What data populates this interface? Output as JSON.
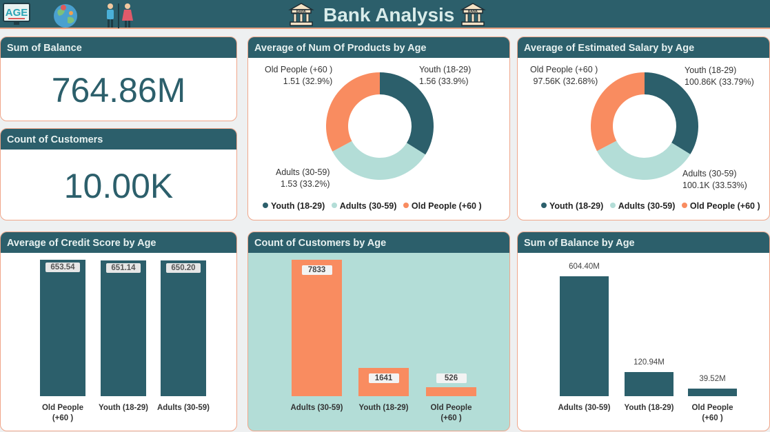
{
  "header": {
    "title": "Bank Analysis",
    "nav_icons": [
      "age-icon",
      "globe-icon",
      "gender-icon"
    ],
    "bank_icon_text": "BANK"
  },
  "kpis": {
    "balance": {
      "title": "Sum of Balance",
      "value": "764.86M"
    },
    "customers": {
      "title": "Count of Customers",
      "value": "10.00K"
    }
  },
  "colors": {
    "teal": "#2c5f6b",
    "light_teal": "#b3ddd7",
    "orange": "#f98c60",
    "accent_border": "#f0a68a"
  },
  "chart_data": [
    {
      "type": "pie",
      "title": "Average of Num Of Products by Age",
      "categories": [
        "Youth (18-29)",
        "Adults (30-59)",
        "Old People (+60 )"
      ],
      "values": [
        1.56,
        1.53,
        1.51
      ],
      "labels": [
        {
          "line1": "Youth (18-29)",
          "line2": "1.56 (33.9%)"
        },
        {
          "line1": "Adults (30-59)",
          "line2": "1.53 (33.2%)"
        },
        {
          "line1": "Old People (+60 )",
          "line2": "1.51 (32.9%)"
        }
      ],
      "legend": [
        "Youth (18-29)",
        "Adults (30-59)",
        "Old People (+60 )"
      ]
    },
    {
      "type": "pie",
      "title": "Average of Estimated Salary by Age",
      "categories": [
        "Youth (18-29)",
        "Adults (30-59)",
        "Old People (+60 )"
      ],
      "values": [
        100.86,
        100.1,
        97.56
      ],
      "labels": [
        {
          "line1": "Youth (18-29)",
          "line2": "100.86K (33.79%)"
        },
        {
          "line1": "Adults (30-59)",
          "line2": "100.1K (33.53%)"
        },
        {
          "line1": "Old People (+60 )",
          "line2": "97.56K (32.68%)"
        }
      ],
      "legend": [
        "Youth (18-29)",
        "Adults (30-59)",
        "Old People (+60 )"
      ]
    },
    {
      "type": "bar",
      "title": "Average of Credit Score by Age",
      "categories": [
        "Old People\n(+60 )",
        "Youth (18-29)",
        "Adults (30-59)"
      ],
      "values": [
        653.54,
        651.14,
        650.2
      ],
      "value_labels": [
        "653.54",
        "651.14",
        "650.20"
      ],
      "ylim": [
        0,
        653.54
      ]
    },
    {
      "type": "bar",
      "title": "Count of Customers by Age",
      "categories": [
        "Adults (30-59)",
        "Youth (18-29)",
        "Old People\n(+60 )"
      ],
      "values": [
        7833,
        1641,
        526
      ],
      "value_labels": [
        "7833",
        "1641",
        "526"
      ],
      "ylim": [
        0,
        7833
      ]
    },
    {
      "type": "bar",
      "title": "Sum of Balance by Age",
      "categories": [
        "Adults (30-59)",
        "Youth (18-29)",
        "Old People\n(+60 )"
      ],
      "values": [
        604.4,
        120.94,
        39.52
      ],
      "value_labels": [
        "604.40M",
        "120.94M",
        "39.52M"
      ],
      "ylim": [
        0,
        604.4
      ]
    }
  ]
}
